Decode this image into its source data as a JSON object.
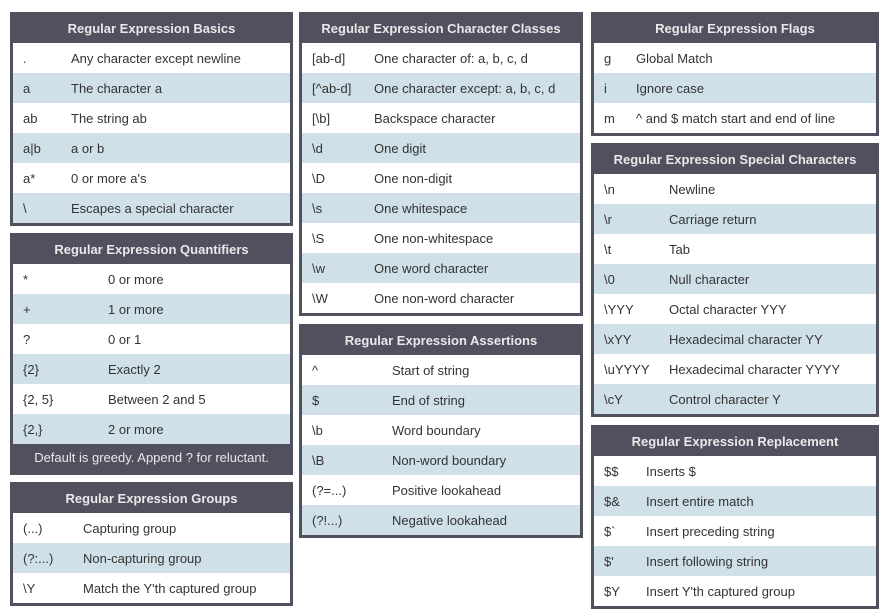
{
  "colors": {
    "header_bg": "#50505e",
    "header_text": "#e9e9e9",
    "row_bg": "#ffffff",
    "row_alt_bg": "#cfe0e8",
    "cell_text": "#333333",
    "page_bg": "#ffffff"
  },
  "tables": {
    "basics": {
      "title": "Regular Expression Basics",
      "rows": [
        [
          ".",
          "Any character except newline"
        ],
        [
          "a",
          "The character a"
        ],
        [
          "ab",
          "The string ab"
        ],
        [
          "a|b",
          "a or b"
        ],
        [
          "a*",
          "0 or more a's"
        ],
        [
          "\\",
          "Escapes a special character"
        ]
      ]
    },
    "quantifiers": {
      "title": "Regular Expression Quantifiers",
      "rows": [
        [
          "*",
          "0 or more"
        ],
        [
          "+",
          "1 or more"
        ],
        [
          "?",
          "0 or 1"
        ],
        [
          "{2}",
          "Exactly 2"
        ],
        [
          "{2, 5}",
          "Between 2 and 5"
        ],
        [
          "{2,}",
          "2 or more"
        ]
      ],
      "footer": "Default is greedy. Append ? for reluctant."
    },
    "groups": {
      "title": "Regular Expression Groups",
      "rows": [
        [
          "(...)",
          "Capturing group"
        ],
        [
          "(?:...)",
          "Non-capturing group"
        ],
        [
          "\\Y",
          "Match the Y'th captured group"
        ]
      ]
    },
    "character_classes": {
      "title": "Regular Expression Character Classes",
      "rows": [
        [
          "[ab-d]",
          "One character of: a, b, c, d"
        ],
        [
          "[^ab-d]",
          "One character except: a, b, c, d"
        ],
        [
          "[\\b]",
          "Backspace character"
        ],
        [
          "\\d",
          "One digit"
        ],
        [
          "\\D",
          "One non-digit"
        ],
        [
          "\\s",
          "One whitespace"
        ],
        [
          "\\S",
          "One non-whitespace"
        ],
        [
          "\\w",
          "One word character"
        ],
        [
          "\\W",
          "One non-word character"
        ]
      ]
    },
    "assertions": {
      "title": "Regular Expression Assertions",
      "rows": [
        [
          "^",
          "Start of string"
        ],
        [
          "$",
          "End of string"
        ],
        [
          "\\b",
          "Word boundary"
        ],
        [
          "\\B",
          "Non-word boundary"
        ],
        [
          "(?=...)",
          "Positive lookahead"
        ],
        [
          "(?!...)",
          "Negative lookahead"
        ]
      ]
    },
    "flags": {
      "title": "Regular Expression Flags",
      "rows": [
        [
          "g",
          "Global Match"
        ],
        [
          "i",
          "Ignore case"
        ],
        [
          "m",
          "^ and $ match start and end of line"
        ]
      ]
    },
    "special_characters": {
      "title": "Regular Expression Special Characters",
      "rows": [
        [
          "\\n",
          "Newline"
        ],
        [
          "\\r",
          "Carriage return"
        ],
        [
          "\\t",
          "Tab"
        ],
        [
          "\\0",
          "Null character"
        ],
        [
          "\\YYY",
          "Octal character YYY"
        ],
        [
          "\\xYY",
          "Hexadecimal character YY"
        ],
        [
          "\\uYYYY",
          "Hexadecimal character YYYY"
        ],
        [
          "\\cY",
          "Control character Y"
        ]
      ]
    },
    "replacement": {
      "title": "Regular Expression Replacement",
      "rows": [
        [
          "$$",
          "Inserts $"
        ],
        [
          "$&",
          "Insert entire match"
        ],
        [
          "$`",
          "Insert preceding string"
        ],
        [
          "$'",
          "Insert following string"
        ],
        [
          "$Y",
          "Insert Y'th captured group"
        ]
      ]
    }
  }
}
